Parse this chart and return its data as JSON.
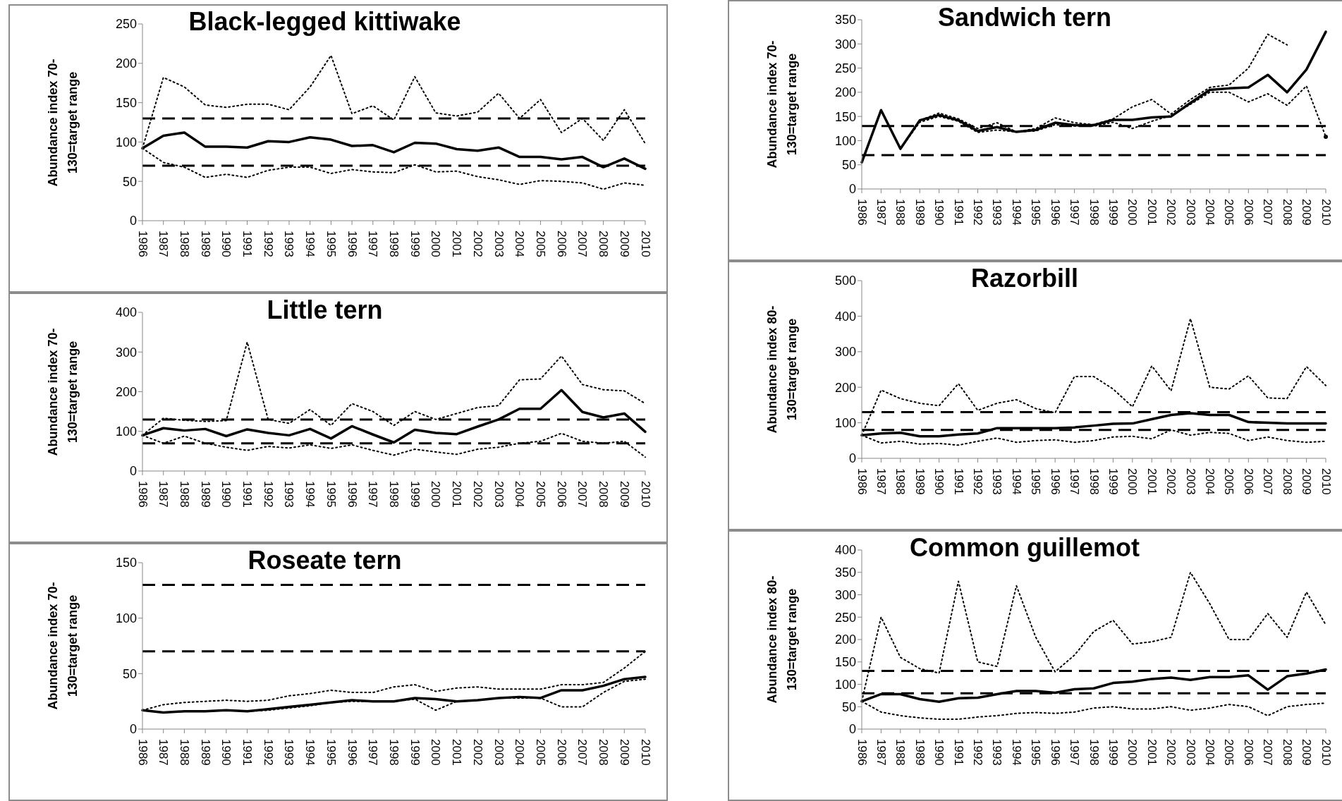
{
  "chart_data": [
    {
      "type": "line",
      "title": "Black-legged kittiwake",
      "ylabel": "Abundance index 70-130=target range",
      "marker": "none",
      "ylim": [
        0,
        250
      ],
      "yticks": [
        0,
        50,
        100,
        150,
        200,
        250
      ],
      "categories": [
        "1986",
        "1987",
        "1988",
        "1989",
        "1990",
        "1991",
        "1992",
        "1993",
        "1994",
        "1995",
        "1996",
        "1997",
        "1998",
        "1999",
        "2000",
        "2001",
        "2002",
        "2003",
        "2004",
        "2005",
        "2006",
        "2007",
        "2008",
        "2009",
        "2010"
      ],
      "series": [
        {
          "color": "#000000",
          "line_style": "solid",
          "values": [
            92,
            108,
            112,
            94,
            94,
            93,
            101,
            100,
            106,
            103,
            95,
            96,
            87,
            99,
            98,
            91,
            89,
            93,
            81,
            81,
            78,
            81,
            68,
            79,
            66
          ]
        },
        {
          "color": "#000000",
          "line_style": "dotted",
          "values": [
            92,
            182,
            170,
            147,
            144,
            148,
            148,
            141,
            170,
            210,
            136,
            146,
            128,
            183,
            137,
            133,
            138,
            162,
            130,
            154,
            112,
            130,
            102,
            141,
            98
          ]
        },
        {
          "color": "#000000",
          "line_style": "dotted",
          "values": [
            92,
            74,
            68,
            55,
            59,
            55,
            64,
            68,
            68,
            60,
            65,
            62,
            61,
            71,
            62,
            63,
            56,
            52,
            46,
            51,
            50,
            48,
            40,
            48,
            45
          ]
        }
      ],
      "ref_lines": [
        {
          "axis": "y",
          "value": 130,
          "line_style": "dashed",
          "color": "#000000"
        },
        {
          "axis": "y",
          "value": 70,
          "line_style": "dashed",
          "color": "#000000"
        }
      ]
    },
    {
      "type": "line",
      "title": "Sandwich tern",
      "ylabel": "Abundance index 70-130=target range",
      "marker": "none",
      "ylim": [
        0,
        350
      ],
      "yticks": [
        0,
        50,
        100,
        150,
        200,
        250,
        300,
        350
      ],
      "categories": [
        "1986",
        "1987",
        "1988",
        "1989",
        "1990",
        "1991",
        "1992",
        "1993",
        "1994",
        "1995",
        "1996",
        "1997",
        "1998",
        "1999",
        "2000",
        "2001",
        "2002",
        "2003",
        "2004",
        "2005",
        "2006",
        "2007",
        "2008",
        "2009",
        "2010"
      ],
      "series": [
        {
          "color": "#000000",
          "line_style": "solid",
          "values": [
            55,
            163,
            83,
            142,
            153,
            142,
            120,
            128,
            118,
            122,
            137,
            132,
            132,
            143,
            143,
            148,
            150,
            178,
            205,
            208,
            210,
            236,
            200,
            247,
            325
          ]
        },
        {
          "color": "#000000",
          "line_style": "dotted",
          "values": [
            55,
            163,
            83,
            142,
            157,
            145,
            125,
            137,
            118,
            125,
            147,
            137,
            133,
            145,
            170,
            185,
            155,
            185,
            210,
            215,
            250,
            320,
            298,
            null,
            108
          ]
        },
        {
          "color": "#000000",
          "line_style": "dotted",
          "values": [
            55,
            163,
            83,
            138,
            150,
            140,
            117,
            122,
            118,
            120,
            133,
            130,
            130,
            138,
            125,
            140,
            152,
            175,
            200,
            200,
            180,
            197,
            173,
            213,
            108
          ]
        }
      ],
      "ref_lines": [
        {
          "axis": "y",
          "value": 130,
          "line_style": "dashed",
          "color": "#000000"
        },
        {
          "axis": "y",
          "value": 70,
          "line_style": "dashed",
          "color": "#000000"
        }
      ]
    },
    {
      "type": "line",
      "title": "Little tern",
      "ylabel": "Abundance index 70-130=target range",
      "marker": "none",
      "ylim": [
        0,
        400
      ],
      "yticks": [
        0,
        100,
        200,
        300,
        400
      ],
      "categories": [
        "1986",
        "1987",
        "1988",
        "1989",
        "1990",
        "1991",
        "1992",
        "1993",
        "1994",
        "1995",
        "1996",
        "1997",
        "1998",
        "1999",
        "2000",
        "2001",
        "2002",
        "2003",
        "2004",
        "2005",
        "2006",
        "2007",
        "2008",
        "2009",
        "2010"
      ],
      "series": [
        {
          "color": "#000000",
          "line_style": "solid",
          "values": [
            90,
            108,
            102,
            106,
            88,
            105,
            96,
            90,
            106,
            82,
            113,
            92,
            72,
            104,
            96,
            93,
            112,
            130,
            157,
            157,
            204,
            149,
            135,
            145,
            99
          ]
        },
        {
          "color": "#000000",
          "line_style": "dotted",
          "values": [
            90,
            133,
            128,
            125,
            127,
            325,
            130,
            120,
            155,
            115,
            170,
            150,
            115,
            150,
            130,
            145,
            160,
            165,
            230,
            232,
            290,
            218,
            205,
            202,
            170
          ]
        },
        {
          "color": "#000000",
          "line_style": "dotted",
          "values": [
            90,
            70,
            88,
            70,
            60,
            52,
            62,
            58,
            66,
            57,
            66,
            52,
            40,
            55,
            48,
            42,
            55,
            60,
            70,
            75,
            95,
            75,
            70,
            75,
            35
          ]
        }
      ],
      "ref_lines": [
        {
          "axis": "y",
          "value": 130,
          "line_style": "dashed",
          "color": "#000000"
        },
        {
          "axis": "y",
          "value": 70,
          "line_style": "dashed",
          "color": "#000000"
        }
      ]
    },
    {
      "type": "line",
      "title": "Razorbill",
      "ylabel": "Abundance index 80-130=target range",
      "marker": "none",
      "ylim": [
        0,
        500
      ],
      "yticks": [
        0,
        100,
        200,
        300,
        400,
        500
      ],
      "categories": [
        "1986",
        "1987",
        "1988",
        "1989",
        "1990",
        "1991",
        "1992",
        "1993",
        "1994",
        "1995",
        "1996",
        "1997",
        "1998",
        "1999",
        "2000",
        "2001",
        "2002",
        "2003",
        "2004",
        "2005",
        "2006",
        "2007",
        "2008",
        "2009",
        "2010"
      ],
      "series": [
        {
          "color": "#000000",
          "line_style": "solid",
          "values": [
            65,
            70,
            72,
            62,
            62,
            67,
            70,
            85,
            85,
            85,
            85,
            87,
            92,
            97,
            98,
            110,
            122,
            127,
            122,
            122,
            102,
            100,
            98,
            98,
            98
          ]
        },
        {
          "color": "#000000",
          "line_style": "dotted",
          "values": [
            65,
            192,
            168,
            155,
            148,
            210,
            135,
            155,
            165,
            140,
            128,
            230,
            230,
            195,
            145,
            260,
            190,
            393,
            200,
            195,
            232,
            170,
            168,
            258,
            205
          ]
        },
        {
          "color": "#000000",
          "line_style": "dotted",
          "values": [
            65,
            43,
            48,
            40,
            42,
            37,
            48,
            57,
            45,
            50,
            52,
            45,
            50,
            60,
            62,
            55,
            80,
            65,
            73,
            70,
            50,
            60,
            50,
            45,
            48
          ]
        }
      ],
      "ref_lines": [
        {
          "axis": "y",
          "value": 130,
          "line_style": "dashed",
          "color": "#000000"
        },
        {
          "axis": "y",
          "value": 80,
          "line_style": "dashed",
          "color": "#000000"
        }
      ]
    },
    {
      "type": "line",
      "title": "Roseate tern",
      "ylabel": "Abundance index 70-130=target range",
      "marker": "none",
      "ylim": [
        0,
        150
      ],
      "yticks": [
        0,
        50,
        100,
        150
      ],
      "categories": [
        "1986",
        "1987",
        "1988",
        "1989",
        "1990",
        "1991",
        "1992",
        "1993",
        "1994",
        "1995",
        "1996",
        "1997",
        "1998",
        "1999",
        "2000",
        "2001",
        "2002",
        "2003",
        "2004",
        "2005",
        "2006",
        "2007",
        "2008",
        "2009",
        "2010"
      ],
      "series": [
        {
          "color": "#000000",
          "line_style": "solid",
          "values": [
            17,
            15,
            16,
            16,
            17,
            16,
            18,
            20,
            22,
            24,
            26,
            25,
            25,
            28,
            27,
            25,
            26,
            28,
            29,
            28,
            35,
            35,
            39,
            45,
            47
          ]
        },
        {
          "color": "#000000",
          "line_style": "dotted",
          "values": [
            17,
            22,
            24,
            25,
            26,
            25,
            26,
            30,
            32,
            35,
            33,
            33,
            38,
            40,
            34,
            37,
            38,
            36,
            36,
            36,
            40,
            40,
            42,
            55,
            70
          ]
        },
        {
          "color": "#000000",
          "line_style": "dotted",
          "values": [
            17,
            15,
            16,
            16,
            17,
            16,
            17,
            19,
            21,
            24,
            25,
            25,
            25,
            27,
            17,
            25,
            26,
            28,
            28,
            28,
            20,
            20,
            33,
            43,
            45
          ]
        }
      ],
      "ref_lines": [
        {
          "axis": "y",
          "value": 130,
          "line_style": "dashed",
          "color": "#000000"
        },
        {
          "axis": "y",
          "value": 70,
          "line_style": "dashed",
          "color": "#000000"
        }
      ]
    },
    {
      "type": "line",
      "title": "Common guillemot",
      "ylabel": "Abundance index 80-130=target range",
      "marker": "none",
      "ylim": [
        0,
        400
      ],
      "yticks": [
        0,
        50,
        100,
        150,
        200,
        250,
        300,
        350,
        400
      ],
      "categories": [
        "1986",
        "1987",
        "1988",
        "1989",
        "1990",
        "1991",
        "1992",
        "1993",
        "1994",
        "1995",
        "1996",
        "1997",
        "1998",
        "1999",
        "2000",
        "2001",
        "2002",
        "2003",
        "2004",
        "2005",
        "2006",
        "2007",
        "2008",
        "2009",
        "2010"
      ],
      "series": [
        {
          "color": "#000000",
          "line_style": "solid",
          "values": [
            62,
            78,
            78,
            67,
            61,
            69,
            70,
            78,
            85,
            85,
            81,
            89,
            91,
            103,
            106,
            112,
            115,
            110,
            116,
            116,
            120,
            88,
            118,
            124,
            133
          ]
        },
        {
          "color": "#000000",
          "line_style": "dotted",
          "values": [
            62,
            250,
            160,
            135,
            125,
            330,
            150,
            140,
            320,
            205,
            128,
            165,
            218,
            243,
            190,
            195,
            205,
            350,
            280,
            200,
            200,
            258,
            205,
            306,
            233
          ]
        },
        {
          "color": "#000000",
          "line_style": "dotted",
          "values": [
            62,
            38,
            30,
            25,
            22,
            22,
            27,
            30,
            35,
            37,
            35,
            38,
            47,
            50,
            45,
            45,
            50,
            42,
            47,
            55,
            50,
            30,
            50,
            55,
            58
          ]
        }
      ],
      "ref_lines": [
        {
          "axis": "y",
          "value": 130,
          "line_style": "dashed",
          "color": "#000000"
        },
        {
          "axis": "y",
          "value": 80,
          "line_style": "dashed",
          "color": "#000000"
        }
      ]
    }
  ]
}
